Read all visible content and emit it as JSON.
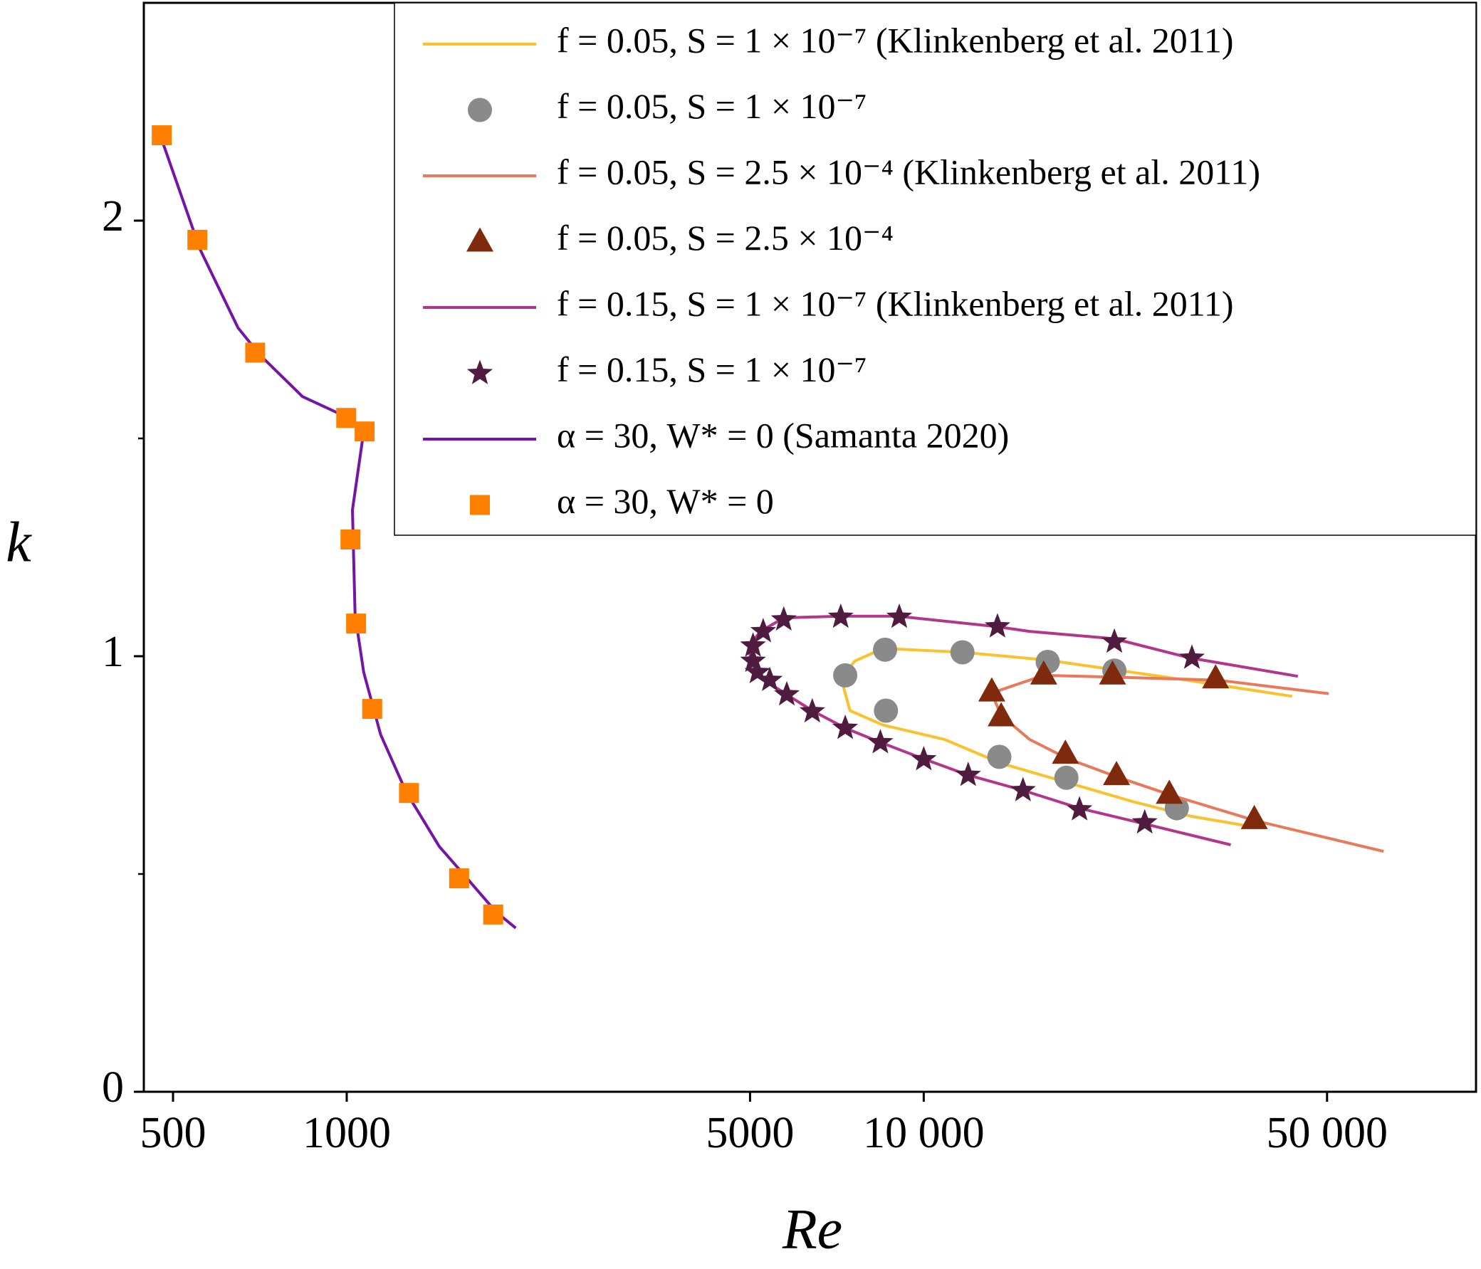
{
  "chart_data": {
    "type": "line",
    "xlabel": "Re",
    "ylabel": "k",
    "xscale": "log",
    "xlim": [
      445,
      90600
    ],
    "ylim": [
      0,
      2.5
    ],
    "xticks": [
      500,
      1000,
      5000,
      {
        "value": 10000,
        "label": "10 000"
      },
      {
        "value": 50000,
        "label": "50 000"
      }
    ],
    "yticks": [
      0,
      1,
      2
    ],
    "yminorticks": [
      0.5,
      1.5
    ],
    "grid": false,
    "legend": "upper right",
    "series": [
      {
        "name": "f = 0.05, S = 1 × 10⁻⁷ (Klinkenberg et al. 2011)",
        "style": "line",
        "color": "#f9c22e",
        "x": [
          43500,
          27900,
          21400,
          16400,
          11700,
          8500,
          7600,
          7180,
          7450,
          8500,
          10860,
          13620,
          17740,
          23070,
          28950,
          37670
        ],
        "values": [
          0.908,
          0.947,
          0.969,
          0.991,
          1.009,
          1.018,
          0.989,
          0.952,
          0.875,
          0.842,
          0.809,
          0.754,
          0.71,
          0.666,
          0.633,
          0.607
        ]
      },
      {
        "name": "f = 0.05, S = 1 × 10⁻⁷",
        "style": "marker",
        "marker": "circle",
        "color": "#8a8a8a",
        "x": [
          7310,
          8570,
          11670,
          16400,
          21400,
          8600,
          13520,
          17670,
          27450
        ],
        "values": [
          0.956,
          1.015,
          1.009,
          0.987,
          0.967,
          0.875,
          0.769,
          0.721,
          0.651
        ]
      },
      {
        "name": "f = 0.05, S = 2.5 × 10⁻⁴ (Klinkenberg et al. 2011)",
        "style": "line",
        "color": "#e8795b",
        "x": [
          50350,
          32400,
          21400,
          16140,
          13620,
          13120,
          13620,
          15250,
          17740,
          21400,
          26840,
          37670,
          62660
        ],
        "values": [
          0.914,
          0.945,
          0.952,
          0.956,
          0.923,
          0.914,
          0.864,
          0.809,
          0.765,
          0.725,
          0.681,
          0.622,
          0.552
        ]
      },
      {
        "name": "f = 0.05, S = 2.5 × 10⁻⁴",
        "style": "marker",
        "marker": "triangle",
        "color": "#7f2a0c",
        "x": [
          16140,
          21240,
          32050,
          13120,
          13620,
          17600,
          21580,
          26640,
          37400
        ],
        "values": [
          0.958,
          0.958,
          0.949,
          0.919,
          0.862,
          0.776,
          0.727,
          0.684,
          0.626
        ]
      },
      {
        "name": "f = 0.15, S = 1 × 10⁻⁷ (Klinkenberg et al. 2011)",
        "style": "line",
        "color": "#b3368a",
        "x": [
          44500,
          28940,
          21400,
          15250,
          13360,
          9000,
          7180,
          5720,
          5210,
          4980,
          5020,
          5270,
          5790,
          6410,
          7310,
          8350,
          9960,
          11940,
          14860,
          18620,
          24150,
          34040
        ],
        "values": [
          0.954,
          0.996,
          1.04,
          1.057,
          1.068,
          1.092,
          1.092,
          1.088,
          1.057,
          1.022,
          0.985,
          0.947,
          0.912,
          0.875,
          0.835,
          0.804,
          0.765,
          0.727,
          0.692,
          0.651,
          0.615,
          0.567
        ]
      },
      {
        "name": "f = 0.15, S = 1 × 10⁻⁷",
        "style": "marker",
        "marker": "star",
        "color": "#4f1c40",
        "x": [
          29160,
          21400,
          13420,
          9070,
          7180,
          5720,
          5270,
          5060,
          5060,
          5150,
          5410,
          5790,
          6410,
          7310,
          8410,
          10000,
          11940,
          14860,
          18620,
          24150
        ],
        "values": [
          0.996,
          1.033,
          1.068,
          1.09,
          1.09,
          1.084,
          1.057,
          1.024,
          0.989,
          0.963,
          0.945,
          0.912,
          0.873,
          0.835,
          0.802,
          0.763,
          0.727,
          0.692,
          0.648,
          0.618
        ]
      },
      {
        "name": "α = 30, W* = 0 (Samanta 2020)",
        "style": "line",
        "color": "#7415a8",
        "x": [
          476,
          557,
          648,
          707,
          838,
          974,
          1070,
          1023,
          1034,
          1070,
          1145,
          1268,
          1447,
          1590,
          1814,
          1963
        ],
        "values": [
          2.193,
          1.934,
          1.754,
          1.692,
          1.596,
          1.556,
          1.516,
          1.336,
          1.095,
          0.963,
          0.82,
          0.688,
          0.563,
          0.501,
          0.413,
          0.376
        ]
      },
      {
        "name": "α = 30, W* = 0",
        "style": "marker",
        "marker": "square",
        "color": "#ff8000",
        "x": [
          478,
          551,
          694,
          998,
          1074,
          1015,
          1038,
          1107,
          1282,
          1566,
          1794
        ],
        "values": [
          2.196,
          1.956,
          1.697,
          1.547,
          1.516,
          1.268,
          1.075,
          0.879,
          0.686,
          0.49,
          0.407
        ]
      }
    ]
  }
}
